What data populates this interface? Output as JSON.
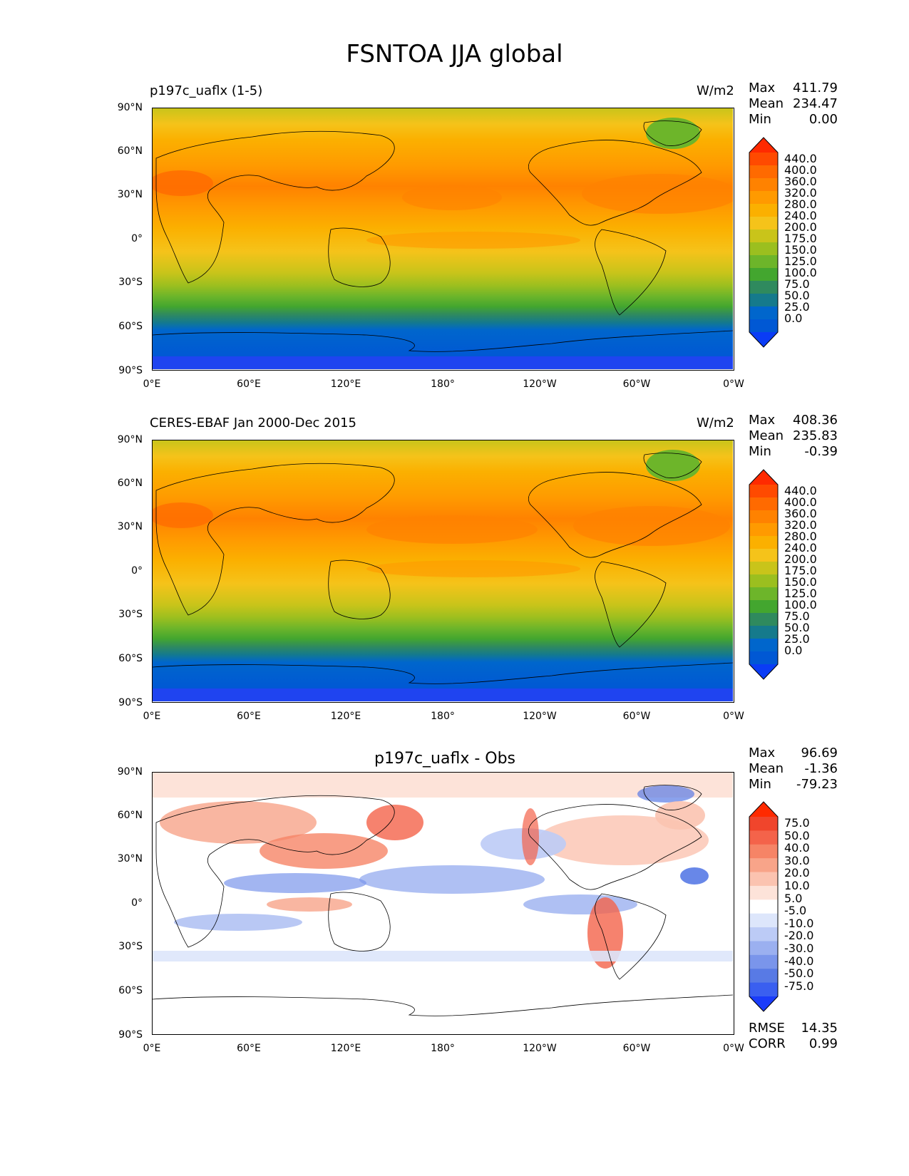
{
  "figure": {
    "title": "FSNTOA JJA global"
  },
  "lat_ticks": [
    "90°N",
    "60°N",
    "30°N",
    "0°",
    "30°S",
    "60°S",
    "90°S"
  ],
  "lon_ticks": [
    "0°E",
    "60°E",
    "120°E",
    "180°",
    "120°W",
    "60°W",
    "0°W"
  ],
  "stat_labels": {
    "max": "Max",
    "mean": "Mean",
    "min": "Min",
    "rmse": "RMSE",
    "corr": "CORR"
  },
  "panels": [
    {
      "left_title": "p197c_uaflx (1-5)",
      "units": "W/m2",
      "stats": {
        "max": "411.79",
        "mean": "234.47",
        "min": "0.00"
      },
      "colorbar": {
        "levels": [
          "440.0",
          "400.0",
          "360.0",
          "320.0",
          "280.0",
          "240.0",
          "200.0",
          "175.0",
          "150.0",
          "125.0",
          "100.0",
          "75.0",
          "50.0",
          "25.0",
          "0.0"
        ],
        "colors": [
          "#ff2a00",
          "#ff4a00",
          "#ff6a00",
          "#ff8200",
          "#ff9a00",
          "#fbb000",
          "#f5c31a",
          "#c9c41a",
          "#9bbf1f",
          "#6db52a",
          "#43a62f",
          "#2f8a5e",
          "#157a8c",
          "#0066cc",
          "#0058d4",
          "#0a3cf5"
        ]
      }
    },
    {
      "left_title": "CERES-EBAF Jan 2000-Dec 2015",
      "units": "W/m2",
      "stats": {
        "max": "408.36",
        "mean": "235.83",
        "min": "-0.39"
      },
      "colorbar": {
        "levels": [
          "440.0",
          "400.0",
          "360.0",
          "320.0",
          "280.0",
          "240.0",
          "200.0",
          "175.0",
          "150.0",
          "125.0",
          "100.0",
          "75.0",
          "50.0",
          "25.0",
          "0.0"
        ],
        "colors": [
          "#ff2a00",
          "#ff4a00",
          "#ff6a00",
          "#ff8200",
          "#ff9a00",
          "#fbb000",
          "#f5c31a",
          "#c9c41a",
          "#9bbf1f",
          "#6db52a",
          "#43a62f",
          "#2f8a5e",
          "#157a8c",
          "#0066cc",
          "#0058d4",
          "#0a3cf5"
        ]
      }
    },
    {
      "center_title": "p197c_uaflx - Obs",
      "stats": {
        "max": "96.69",
        "mean": "-1.36",
        "min": "-79.23",
        "rmse": "14.35",
        "corr": "0.99"
      },
      "colorbar": {
        "levels": [
          "75.0",
          "50.0",
          "40.0",
          "30.0",
          "20.0",
          "10.0",
          "5.0",
          "-5.0",
          "-10.0",
          "-20.0",
          "-30.0",
          "-40.0",
          "-50.0",
          "-75.0"
        ],
        "colors": [
          "#ff2a00",
          "#f0452c",
          "#f4634a",
          "#f68466",
          "#f8a489",
          "#fbc3b0",
          "#fde3d9",
          "#ffffff",
          "#dde6fb",
          "#bccbf6",
          "#9bb0f0",
          "#7a95eb",
          "#587ae5",
          "#3a5ff0",
          "#1a3cfa"
        ]
      }
    }
  ],
  "chart_data": [
    {
      "type": "heatmap",
      "title": "FSNTOA JJA global",
      "subtitle": "p197c_uaflx (1-5)",
      "units": "W/m2",
      "stats": {
        "max": 411.79,
        "mean": 234.47,
        "min": 0.0
      },
      "levels": [
        0,
        25,
        50,
        75,
        100,
        125,
        150,
        175,
        200,
        240,
        280,
        320,
        360,
        400,
        440
      ],
      "x_ticks": [
        "0°E",
        "60°E",
        "120°E",
        "180°",
        "120°W",
        "60°W",
        "0°W"
      ],
      "y_ticks": [
        "90°N",
        "60°N",
        "30°N",
        "0°",
        "30°S",
        "60°S",
        "90°S"
      ],
      "zonal_profile": {
        "lat": [
          90,
          60,
          30,
          0,
          -30,
          -60,
          -90
        ],
        "value": [
          190,
          270,
          320,
          260,
          200,
          60,
          0
        ]
      }
    },
    {
      "type": "heatmap",
      "title": "FSNTOA JJA global",
      "subtitle": "CERES-EBAF Jan 2000-Dec 2015",
      "units": "W/m2",
      "stats": {
        "max": 408.36,
        "mean": 235.83,
        "min": -0.39
      },
      "levels": [
        0,
        25,
        50,
        75,
        100,
        125,
        150,
        175,
        200,
        240,
        280,
        320,
        360,
        400,
        440
      ],
      "x_ticks": [
        "0°E",
        "60°E",
        "120°E",
        "180°",
        "120°W",
        "60°W",
        "0°W"
      ],
      "y_ticks": [
        "90°N",
        "60°N",
        "30°N",
        "0°",
        "30°S",
        "60°S",
        "90°S"
      ],
      "zonal_profile": {
        "lat": [
          90,
          60,
          30,
          0,
          -30,
          -60,
          -90
        ],
        "value": [
          190,
          270,
          320,
          260,
          200,
          60,
          0
        ]
      }
    },
    {
      "type": "heatmap",
      "title": "FSNTOA JJA global",
      "subtitle": "p197c_uaflx - Obs",
      "stats": {
        "max": 96.69,
        "mean": -1.36,
        "min": -79.23,
        "rmse": 14.35,
        "corr": 0.99
      },
      "levels": [
        -75,
        -50,
        -40,
        -30,
        -20,
        -10,
        -5,
        5,
        10,
        20,
        30,
        40,
        50,
        75
      ],
      "x_ticks": [
        "0°E",
        "60°E",
        "120°E",
        "180°",
        "120°W",
        "60°W",
        "0°W"
      ],
      "y_ticks": [
        "90°N",
        "60°N",
        "30°N",
        "0°",
        "30°S",
        "60°S",
        "90°S"
      ]
    }
  ]
}
